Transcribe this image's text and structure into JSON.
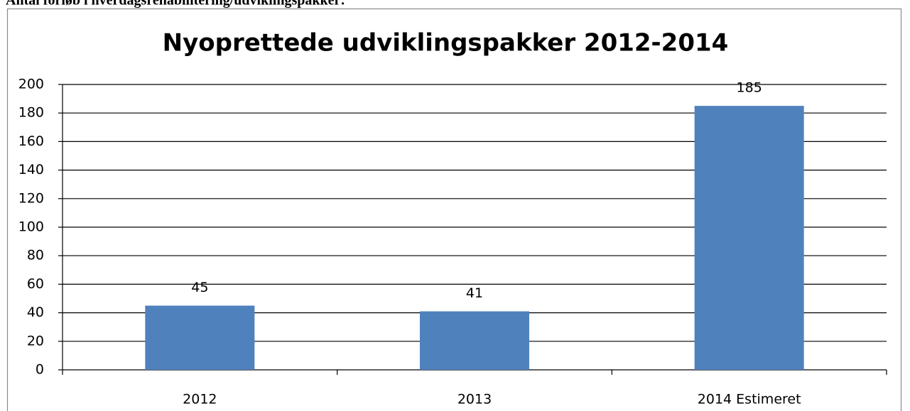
{
  "heading": "Antal forløb i hverdagsrehabilitering/udviklingspakker:",
  "chart_data": {
    "type": "bar",
    "title": "Nyoprettede udviklingspakker  2012-2014",
    "categories": [
      "2012",
      "2013",
      "2014 Estimeret"
    ],
    "values": [
      45,
      41,
      185
    ],
    "color": "#4f81bd",
    "ylim": [
      0,
      200
    ],
    "yticks": [
      0,
      20,
      40,
      60,
      80,
      100,
      120,
      140,
      160,
      180,
      200
    ],
    "grid": true
  }
}
